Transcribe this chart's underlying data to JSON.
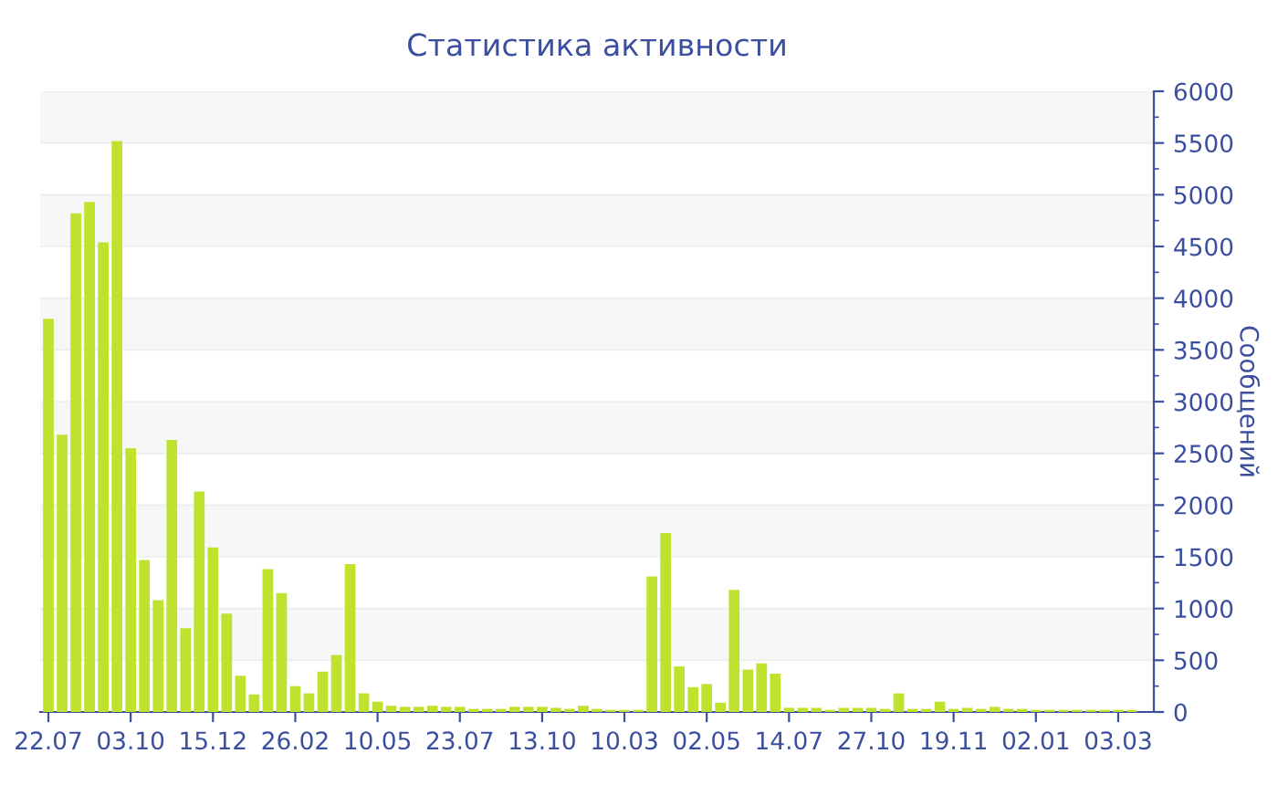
{
  "chart_data": {
    "type": "bar",
    "title": "Статистика активности",
    "ylabel": "Сообщений",
    "categories": [
      "22.07",
      null,
      null,
      null,
      null,
      null,
      "03.10",
      null,
      null,
      null,
      null,
      null,
      "15.12",
      null,
      null,
      null,
      null,
      null,
      "26.02",
      null,
      null,
      null,
      null,
      null,
      "10.05",
      null,
      null,
      null,
      null,
      null,
      "23.07",
      null,
      null,
      null,
      null,
      null,
      "13.10",
      null,
      null,
      null,
      null,
      null,
      "10.03",
      null,
      null,
      null,
      null,
      null,
      "02.05",
      null,
      null,
      null,
      null,
      null,
      "14.07",
      null,
      null,
      null,
      null,
      null,
      "27.10",
      null,
      null,
      null,
      null,
      null,
      "19.11",
      null,
      null,
      null,
      null,
      null,
      "02.01",
      null,
      null,
      null,
      null,
      null,
      "03.03",
      null
    ],
    "values": [
      3800,
      2680,
      4820,
      4930,
      4540,
      5520,
      2550,
      1470,
      1080,
      2630,
      810,
      2130,
      1590,
      950,
      350,
      170,
      1380,
      1150,
      250,
      180,
      390,
      550,
      1430,
      180,
      100,
      60,
      50,
      50,
      60,
      50,
      50,
      30,
      30,
      30,
      50,
      50,
      50,
      40,
      30,
      60,
      30,
      20,
      20,
      20,
      1310,
      1730,
      440,
      240,
      270,
      90,
      1180,
      410,
      470,
      370,
      40,
      40,
      40,
      20,
      40,
      40,
      40,
      30,
      180,
      30,
      30,
      100,
      30,
      40,
      30,
      50,
      30,
      30,
      20,
      20,
      20,
      20,
      20,
      20,
      20,
      20
    ],
    "color": "#bfe22f",
    "ylim": [
      0,
      6000
    ],
    "yticks": [
      0,
      500,
      1000,
      1500,
      2000,
      2500,
      3000,
      3500,
      4000,
      4500,
      5000,
      5500,
      6000
    ],
    "grid": "y",
    "legend": false
  }
}
